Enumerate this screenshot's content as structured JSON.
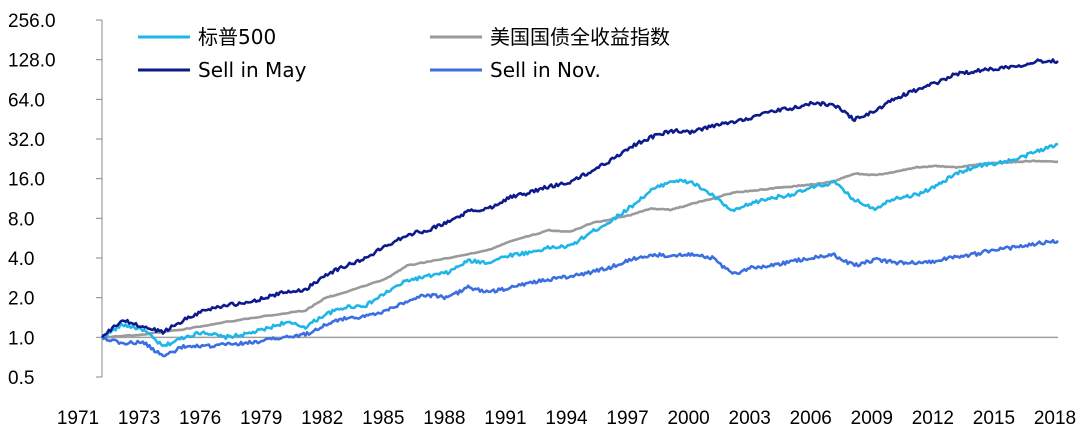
{
  "chart_data": {
    "type": "line",
    "title": "",
    "xlabel": "",
    "ylabel": "",
    "y_scale": "log2",
    "ylim": [
      0.5,
      256
    ],
    "xlim": [
      1971,
      2018
    ],
    "y_ticks": [
      "256.0",
      "128.0",
      "64.0",
      "32.0",
      "16.0",
      "8.0",
      "4.0",
      "2.0",
      "1.0",
      "0.5"
    ],
    "x_ticks": [
      "1971",
      "1973",
      "1976",
      "1979",
      "1982",
      "1985",
      "1988",
      "1991",
      "1994",
      "1997",
      "2000",
      "2003",
      "2006",
      "2009",
      "2012",
      "2015",
      "2018"
    ],
    "legend_position": "top-left",
    "series": [
      {
        "name": "标普500",
        "color": "#1fb5e8",
        "points": [
          [
            1971,
            1.0
          ],
          [
            1972,
            1.25
          ],
          [
            1973,
            1.15
          ],
          [
            1974,
            0.85
          ],
          [
            1975,
            1.0
          ],
          [
            1976,
            1.1
          ],
          [
            1977,
            1.0
          ],
          [
            1978,
            1.05
          ],
          [
            1979,
            1.15
          ],
          [
            1980,
            1.3
          ],
          [
            1981,
            1.2
          ],
          [
            1982,
            1.5
          ],
          [
            1983,
            1.7
          ],
          [
            1984,
            1.75
          ],
          [
            1985,
            2.2
          ],
          [
            1986,
            2.7
          ],
          [
            1987,
            2.9
          ],
          [
            1988,
            3.1
          ],
          [
            1989,
            3.8
          ],
          [
            1990,
            3.7
          ],
          [
            1991,
            4.2
          ],
          [
            1992,
            4.4
          ],
          [
            1993,
            4.8
          ],
          [
            1994,
            4.9
          ],
          [
            1995,
            6.2
          ],
          [
            1996,
            7.6
          ],
          [
            1997,
            9.8
          ],
          [
            1998,
            13.0
          ],
          [
            1999,
            15.5
          ],
          [
            2000,
            15.0
          ],
          [
            2001,
            12.0
          ],
          [
            2002,
            9.0
          ],
          [
            2003,
            10.5
          ],
          [
            2004,
            11.5
          ],
          [
            2005,
            12.2
          ],
          [
            2006,
            13.8
          ],
          [
            2007,
            15.0
          ],
          [
            2008,
            11.0
          ],
          [
            2009,
            9.5
          ],
          [
            2010,
            11.5
          ],
          [
            2011,
            12.0
          ],
          [
            2012,
            14.0
          ],
          [
            2013,
            17.5
          ],
          [
            2014,
            20.0
          ],
          [
            2015,
            21.0
          ],
          [
            2016,
            22.5
          ],
          [
            2017,
            26.0
          ],
          [
            2018,
            29.0
          ]
        ]
      },
      {
        "name": "美国国债全收益指数",
        "color": "#9a9a9a",
        "points": [
          [
            1971,
            1.0
          ],
          [
            1973,
            1.05
          ],
          [
            1975,
            1.15
          ],
          [
            1977,
            1.3
          ],
          [
            1979,
            1.45
          ],
          [
            1981,
            1.6
          ],
          [
            1982,
            2.0
          ],
          [
            1983,
            2.2
          ],
          [
            1985,
            2.8
          ],
          [
            1986,
            3.5
          ],
          [
            1988,
            4.0
          ],
          [
            1990,
            4.6
          ],
          [
            1991,
            5.3
          ],
          [
            1993,
            6.5
          ],
          [
            1994,
            6.3
          ],
          [
            1995,
            7.3
          ],
          [
            1997,
            8.5
          ],
          [
            1998,
            9.5
          ],
          [
            1999,
            9.3
          ],
          [
            2000,
            10.3
          ],
          [
            2001,
            11.3
          ],
          [
            2002,
            12.5
          ],
          [
            2003,
            13.0
          ],
          [
            2004,
            13.5
          ],
          [
            2005,
            14.0
          ],
          [
            2006,
            14.5
          ],
          [
            2007,
            15.3
          ],
          [
            2008,
            17.5
          ],
          [
            2009,
            17.0
          ],
          [
            2010,
            18.0
          ],
          [
            2011,
            19.5
          ],
          [
            2012,
            20.0
          ],
          [
            2013,
            19.5
          ],
          [
            2014,
            20.5
          ],
          [
            2015,
            21.0
          ],
          [
            2016,
            21.5
          ],
          [
            2017,
            21.8
          ],
          [
            2018,
            21.5
          ]
        ]
      },
      {
        "name": "Sell in May",
        "color": "#0d1a8c",
        "points": [
          [
            1971,
            1.0
          ],
          [
            1972,
            1.35
          ],
          [
            1973,
            1.2
          ],
          [
            1974,
            1.1
          ],
          [
            1975,
            1.35
          ],
          [
            1976,
            1.6
          ],
          [
            1977,
            1.75
          ],
          [
            1978,
            1.8
          ],
          [
            1979,
            2.0
          ],
          [
            1980,
            2.2
          ],
          [
            1981,
            2.3
          ],
          [
            1982,
            3.0
          ],
          [
            1983,
            3.5
          ],
          [
            1984,
            4.0
          ],
          [
            1985,
            5.0
          ],
          [
            1986,
            6.0
          ],
          [
            1987,
            6.5
          ],
          [
            1988,
            7.5
          ],
          [
            1989,
            9.0
          ],
          [
            1990,
            9.5
          ],
          [
            1991,
            11.5
          ],
          [
            1992,
            12.5
          ],
          [
            1993,
            14.0
          ],
          [
            1994,
            15.0
          ],
          [
            1995,
            18.0
          ],
          [
            1996,
            22.0
          ],
          [
            1997,
            28.0
          ],
          [
            1998,
            33.0
          ],
          [
            1999,
            37.0
          ],
          [
            2000,
            36.0
          ],
          [
            2001,
            40.0
          ],
          [
            2002,
            43.0
          ],
          [
            2003,
            47.0
          ],
          [
            2004,
            52.0
          ],
          [
            2005,
            55.0
          ],
          [
            2006,
            60.0
          ],
          [
            2007,
            58.0
          ],
          [
            2008,
            45.0
          ],
          [
            2009,
            52.0
          ],
          [
            2010,
            65.0
          ],
          [
            2011,
            75.0
          ],
          [
            2012,
            85.0
          ],
          [
            2013,
            100.0
          ],
          [
            2014,
            105.0
          ],
          [
            2015,
            110.0
          ],
          [
            2016,
            115.0
          ],
          [
            2017,
            125.0
          ],
          [
            2018,
            125.0
          ]
        ]
      },
      {
        "name": "Sell in Nov.",
        "color": "#3b6fe0",
        "points": [
          [
            1971,
            1.0
          ],
          [
            1972,
            0.9
          ],
          [
            1973,
            0.92
          ],
          [
            1974,
            0.72
          ],
          [
            1975,
            0.85
          ],
          [
            1976,
            0.85
          ],
          [
            1977,
            0.88
          ],
          [
            1978,
            0.9
          ],
          [
            1979,
            0.95
          ],
          [
            1980,
            1.0
          ],
          [
            1981,
            1.05
          ],
          [
            1982,
            1.25
          ],
          [
            1983,
            1.4
          ],
          [
            1984,
            1.45
          ],
          [
            1985,
            1.6
          ],
          [
            1986,
            1.9
          ],
          [
            1987,
            2.1
          ],
          [
            1988,
            2.0
          ],
          [
            1989,
            2.4
          ],
          [
            1990,
            2.2
          ],
          [
            1991,
            2.35
          ],
          [
            1992,
            2.6
          ],
          [
            1993,
            2.75
          ],
          [
            1994,
            2.9
          ],
          [
            1995,
            3.1
          ],
          [
            1996,
            3.4
          ],
          [
            1997,
            3.9
          ],
          [
            1998,
            4.2
          ],
          [
            1999,
            4.2
          ],
          [
            2000,
            4.3
          ],
          [
            2001,
            4.0
          ],
          [
            2002,
            3.0
          ],
          [
            2003,
            3.4
          ],
          [
            2004,
            3.5
          ],
          [
            2005,
            3.8
          ],
          [
            2006,
            4.0
          ],
          [
            2007,
            4.2
          ],
          [
            2008,
            3.5
          ],
          [
            2009,
            3.9
          ],
          [
            2010,
            3.7
          ],
          [
            2011,
            3.7
          ],
          [
            2012,
            3.8
          ],
          [
            2013,
            4.1
          ],
          [
            2014,
            4.3
          ],
          [
            2015,
            4.7
          ],
          [
            2016,
            4.8
          ],
          [
            2017,
            5.2
          ],
          [
            2018,
            5.4
          ]
        ]
      }
    ]
  }
}
